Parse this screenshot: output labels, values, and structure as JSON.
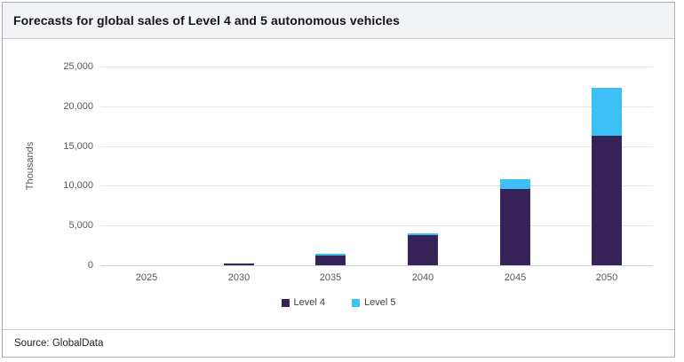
{
  "header": {
    "title": "Forecasts for global sales of Level 4 and 5 autonomous vehicles"
  },
  "footer": {
    "source": "Source: GlobalData"
  },
  "chart_data": {
    "type": "bar",
    "stacked": true,
    "title": "Forecasts for global sales of Level 4 and 5 autonomous vehicles",
    "xlabel": "",
    "ylabel": "Thousands",
    "categories": [
      "2025",
      "2030",
      "2035",
      "2040",
      "2045",
      "2050"
    ],
    "series": [
      {
        "name": "Level 4",
        "color": "#362459",
        "values": [
          0,
          200,
          1200,
          3800,
          9600,
          16300
        ]
      },
      {
        "name": "Level 5",
        "color": "#3DC0F5",
        "values": [
          0,
          0,
          200,
          250,
          1250,
          6000
        ]
      }
    ],
    "ylim": [
      0,
      25000
    ],
    "ytick_step": 5000,
    "ytick_labels": [
      "0",
      "5,000",
      "10,000",
      "15,000",
      "20,000",
      "25,000"
    ],
    "grid": true,
    "legend_position": "bottom"
  },
  "colors": {
    "level4": "#362459",
    "level5": "#3DC0F5",
    "gridline": "#e4e6e8",
    "axis_text": "#595959",
    "header_bg": "#f2f3f5",
    "border": "#a8aeb3"
  }
}
